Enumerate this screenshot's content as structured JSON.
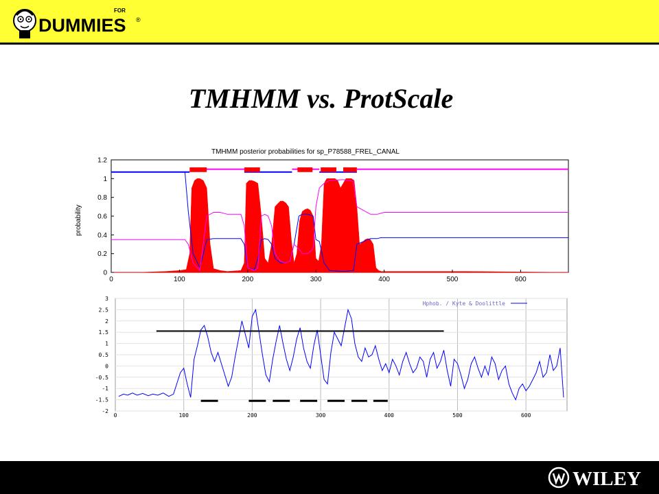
{
  "slide": {
    "title": "TMHMM vs. ProtScale"
  },
  "header": {
    "logo_word": "DUMMIES",
    "logo_for": "FOR",
    "logo_reg": "®",
    "background": "#ffff33"
  },
  "footer": {
    "brand": "WILEY",
    "background": "#000000"
  },
  "chart_data": [
    {
      "type": "area",
      "title": "TMHMM posterior probabilities for sp_P78588_FREL_CANAL",
      "ylabel": "probability",
      "xlim": [
        0,
        670
      ],
      "ylim": [
        0,
        1.2
      ],
      "xticks": [
        0,
        100,
        200,
        300,
        400,
        500,
        600
      ],
      "yticks": [
        0,
        0.2,
        0.4,
        0.6,
        0.8,
        1,
        1.2
      ],
      "grid": false,
      "colors": {
        "transmembrane": "#ff0000",
        "inside": "#0000ff",
        "outside": "#ff00ff"
      },
      "transmembrane_profile": {
        "x": [
          0,
          40,
          80,
          100,
          110,
          115,
          118,
          122,
          126,
          130,
          135,
          140,
          145,
          150,
          160,
          170,
          190,
          195,
          198,
          202,
          206,
          210,
          215,
          220,
          225,
          230,
          235,
          240,
          245,
          248,
          252,
          256,
          260,
          264,
          268,
          272,
          276,
          280,
          284,
          288,
          292,
          296,
          300,
          304,
          308,
          312,
          316,
          320,
          324,
          328,
          332,
          336,
          340,
          344,
          348,
          352,
          356,
          360,
          364,
          368,
          372,
          376,
          380,
          384,
          388,
          392,
          396,
          400,
          410,
          460,
          520,
          670
        ],
        "y": [
          0,
          0,
          0.01,
          0.02,
          0.03,
          0.2,
          0.9,
          0.98,
          1,
          1,
          0.98,
          0.9,
          0.3,
          0.04,
          0.02,
          0.01,
          0.02,
          0.1,
          0.95,
          0.98,
          0.98,
          0.97,
          0.95,
          0.6,
          0.15,
          0.1,
          0.3,
          0.7,
          0.74,
          0.76,
          0.76,
          0.74,
          0.7,
          0.35,
          0.1,
          0.2,
          0.55,
          0.65,
          0.67,
          0.68,
          0.66,
          0.6,
          0.15,
          0.12,
          0.3,
          0.95,
          1,
          1,
          1,
          1,
          0.98,
          0.9,
          0.95,
          1,
          1,
          1,
          0.98,
          0.7,
          0.3,
          0.32,
          0.35,
          0.36,
          0.35,
          0.3,
          0.05,
          0.02,
          0.01,
          0.01,
          0.01,
          0.01,
          0.01,
          0
        ]
      },
      "inside_line": {
        "x": [
          0,
          108,
          113,
          120,
          130,
          140,
          150,
          160,
          170,
          190,
          195,
          200,
          210,
          215,
          220,
          225,
          230,
          235,
          240,
          248,
          255,
          262,
          268,
          275,
          280,
          288,
          296,
          300,
          305,
          312,
          320,
          340,
          355,
          360,
          380,
          390,
          395,
          400,
          670
        ],
        "y": [
          1.07,
          1.07,
          0.65,
          0.2,
          0.05,
          0.35,
          0.36,
          0.36,
          0.36,
          0.36,
          0.3,
          0.05,
          0.03,
          0.15,
          0.35,
          0.36,
          0.35,
          0.3,
          0.15,
          0.1,
          0.1,
          0.12,
          0.3,
          0.6,
          0.62,
          0.62,
          0.6,
          0.35,
          0.33,
          0.1,
          0.02,
          0.01,
          0.02,
          0.3,
          0.36,
          0.36,
          0.37,
          0.37,
          0.37
        ]
      },
      "outside_line": {
        "x": [
          0,
          108,
          113,
          120,
          130,
          140,
          150,
          160,
          170,
          190,
          195,
          200,
          210,
          215,
          220,
          225,
          230,
          235,
          240,
          248,
          255,
          262,
          268,
          275,
          280,
          288,
          296,
          300,
          305,
          312,
          320,
          340,
          355,
          360,
          380,
          390,
          395,
          400,
          670
        ],
        "y": [
          0.35,
          0.35,
          0.3,
          0.1,
          0.02,
          0.6,
          0.64,
          0.64,
          0.62,
          0.62,
          0.5,
          0.05,
          0.02,
          0.05,
          0.6,
          0.62,
          0.6,
          0.5,
          0.2,
          0.12,
          0.1,
          0.12,
          0.3,
          0.25,
          0.2,
          0.2,
          0.25,
          0.7,
          0.9,
          0.95,
          0.98,
          0.99,
          0.97,
          0.7,
          0.62,
          0.62,
          0.63,
          0.64,
          0.64
        ]
      },
      "topology_bar": {
        "base_colors": [
          "#0000ff",
          "#ff00ff"
        ],
        "segments": [
          {
            "start": 0,
            "end": 115,
            "side": "inside"
          },
          {
            "start": 115,
            "end": 195,
            "side": "outside"
          },
          {
            "start": 195,
            "end": 265,
            "side": "inside"
          },
          {
            "start": 265,
            "end": 305,
            "side": "outside"
          },
          {
            "start": 305,
            "end": 360,
            "side": "inside"
          },
          {
            "start": 360,
            "end": 670,
            "side": "outside"
          }
        ],
        "tm_segments": [
          [
            115,
            140
          ],
          [
            195,
            218
          ],
          [
            273,
            295
          ],
          [
            307,
            330
          ],
          [
            340,
            360
          ]
        ]
      }
    },
    {
      "type": "line",
      "title": "",
      "legend_text": "Hphob. / Kyte & Doolittle",
      "legend_position": "top-right",
      "xlim": [
        0,
        660
      ],
      "ylim": [
        -2,
        3
      ],
      "xticks": [
        0,
        100,
        200,
        300,
        400,
        500,
        600
      ],
      "yticks": [
        3,
        2.5,
        2,
        1.5,
        1,
        0.5,
        0,
        -0.5,
        -1,
        -1.5,
        -2
      ],
      "ytick_labels": [
        "3",
        "2.5",
        "2",
        "1.5",
        "1",
        "0.5",
        "0",
        "-0.5",
        "-1",
        "-1.5",
        "-2"
      ],
      "grid": true,
      "series": [
        {
          "name": "Hphob. / Kyte & Doolittle",
          "color": "#0000ff",
          "x": [
            5,
            12,
            18,
            25,
            32,
            40,
            48,
            55,
            62,
            70,
            78,
            85,
            95,
            100,
            105,
            110,
            115,
            120,
            125,
            130,
            135,
            140,
            145,
            150,
            155,
            160,
            165,
            170,
            175,
            180,
            185,
            190,
            195,
            200,
            205,
            210,
            215,
            220,
            225,
            230,
            235,
            240,
            245,
            250,
            255,
            260,
            265,
            270,
            275,
            280,
            285,
            290,
            295,
            300,
            305,
            310,
            315,
            320,
            325,
            330,
            335,
            340,
            345,
            350,
            355,
            360,
            365,
            370,
            375,
            380,
            385,
            390,
            395,
            400,
            405,
            410,
            415,
            420,
            425,
            430,
            435,
            440,
            445,
            450,
            455,
            460,
            465,
            470,
            475,
            480,
            485,
            490,
            495,
            500,
            505,
            510,
            515,
            520,
            525,
            530,
            535,
            540,
            545,
            550,
            555,
            560,
            565,
            570,
            575,
            580,
            585,
            590,
            595,
            600,
            605,
            610,
            615,
            620,
            625,
            630,
            635,
            640,
            645,
            650,
            655
          ],
          "y": [
            -1.35,
            -1.25,
            -1.3,
            -1.2,
            -1.3,
            -1.22,
            -1.32,
            -1.25,
            -1.3,
            -1.2,
            -1.35,
            -1.25,
            -0.3,
            -0.1,
            -0.8,
            -1.4,
            0.3,
            0.9,
            1.6,
            1.8,
            1.3,
            0.6,
            0.2,
            0.6,
            0.1,
            -0.4,
            -0.9,
            -0.5,
            0.4,
            1.2,
            2.0,
            1.4,
            0.8,
            2.2,
            2.5,
            1.5,
            0.5,
            -0.4,
            -0.7,
            0.3,
            1.1,
            1.8,
            1.0,
            0.3,
            -0.2,
            0.4,
            1.2,
            1.7,
            0.8,
            0.2,
            -0.1,
            0.9,
            1.6,
            0.5,
            -0.6,
            -0.8,
            0.6,
            1.5,
            1.2,
            0.9,
            1.7,
            2.5,
            2.1,
            1.0,
            0.4,
            0.2,
            0.8,
            0.4,
            0.5,
            0.9,
            0.3,
            -0.2,
            0.1,
            -0.3,
            0.3,
            0.0,
            -0.4,
            0.2,
            0.6,
            0.1,
            -0.3,
            -0.1,
            0.4,
            0.2,
            -0.5,
            0.3,
            0.6,
            -0.1,
            0.2,
            0.7,
            -0.2,
            -0.9,
            0.3,
            0.1,
            -0.4,
            -1.0,
            -0.6,
            0.1,
            0.4,
            -0.1,
            -0.5,
            0.0,
            -0.4,
            0.4,
            0.1,
            -0.6,
            -0.2,
            0.0,
            -0.8,
            -1.2,
            -1.5,
            -1.0,
            -0.8,
            -1.1,
            -0.9,
            -0.6,
            -0.3,
            0.2,
            -0.5,
            -0.3,
            0.5,
            -0.2,
            0.0,
            0.8,
            -1.4
          ]
        }
      ],
      "threshold_line": {
        "y": 1.55,
        "x_start": 60,
        "x_end": 480,
        "color": "#000000"
      },
      "tm_markers": {
        "y": -1.55,
        "segments": [
          [
            125,
            150
          ],
          [
            195,
            220
          ],
          [
            230,
            255
          ],
          [
            270,
            295
          ],
          [
            310,
            335
          ],
          [
            345,
            368
          ],
          [
            377,
            398
          ]
        ],
        "color": "#000000"
      }
    }
  ]
}
